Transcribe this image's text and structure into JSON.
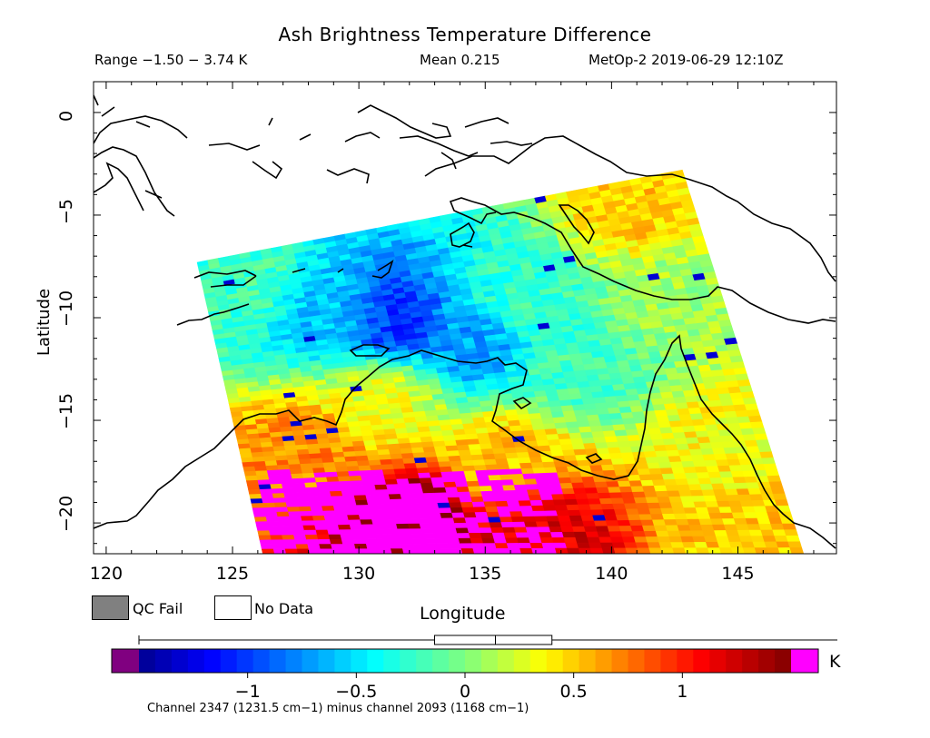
{
  "header": {
    "title": "Ash Brightness Temperature Difference",
    "range": "Range −1.50 − 3.74 K",
    "mean": "Mean 0.215",
    "satellite_time": "MetOp-2 2019-06-29 12:10Z"
  },
  "chart_data": {
    "type": "heatmap",
    "title": "Ash Brightness Temperature Difference",
    "xlabel": "Longitude",
    "ylabel": "Latitude",
    "xlim": [
      119.5,
      148.9
    ],
    "ylim": [
      -21.5,
      1.5
    ],
    "x_ticks": [
      "120",
      "125",
      "130",
      "135",
      "140",
      "145"
    ],
    "y_ticks": [
      "0",
      "−5",
      "−10",
      "−15",
      "−20"
    ],
    "grid": false,
    "colorbar": {
      "min": -1.5,
      "max": 1.5,
      "unit": "K",
      "ticks": [
        "−1",
        "−0.5",
        "0",
        "0.5",
        "1"
      ],
      "tick_values": [
        -1,
        -0.5,
        0,
        0.5,
        1
      ],
      "under_color": "#800080",
      "over_color": "#ff00ff",
      "boxplot": {
        "min": -1.5,
        "q1": -0.14,
        "median": 0.14,
        "q3": 0.4,
        "max": 3.74
      }
    },
    "swath_corners": [
      [
        123.6,
        -7.3
      ],
      [
        142.8,
        -2.8
      ],
      [
        147.6,
        -21.5
      ],
      [
        126.2,
        -21.5
      ]
    ],
    "pattern": [
      {
        "lon": 131.5,
        "lat": -10.2,
        "value": -1.0
      },
      {
        "lon": 128.5,
        "lat": -9.5,
        "value": -0.6
      },
      {
        "lon": 134.5,
        "lat": -11.2,
        "value": -0.7
      },
      {
        "lon": 136.5,
        "lat": -9.0,
        "value": -0.25
      },
      {
        "lon": 139.0,
        "lat": -12.5,
        "value": -0.2
      },
      {
        "lon": 132.0,
        "lat": -20.0,
        "value": 1.6
      },
      {
        "lon": 137.5,
        "lat": -20.5,
        "value": 1.2
      },
      {
        "lon": 128.0,
        "lat": -16.5,
        "value": 0.7
      },
      {
        "lon": 136.0,
        "lat": -17.0,
        "value": 0.5
      },
      {
        "lon": 131.0,
        "lat": -14.0,
        "value": 0.3
      },
      {
        "lon": 144.5,
        "lat": -16.0,
        "value": 0.35
      },
      {
        "lon": 145.5,
        "lat": -20.5,
        "value": 0.5
      },
      {
        "lon": 141.0,
        "lat": -4.5,
        "value": 0.5
      },
      {
        "lon": 126.0,
        "lat": -8.5,
        "value": -0.2
      },
      {
        "lon": 142.5,
        "lat": -9.0,
        "value": 0.1
      }
    ]
  },
  "legend": {
    "qc_fail": "QC Fail",
    "no_data": "No Data",
    "qc_fail_color": "#808080",
    "no_data_color": "#ffffff"
  },
  "footnote": "Channel 2347 (1231.5 cm−1) minus channel 2093 (1168 cm−1)"
}
